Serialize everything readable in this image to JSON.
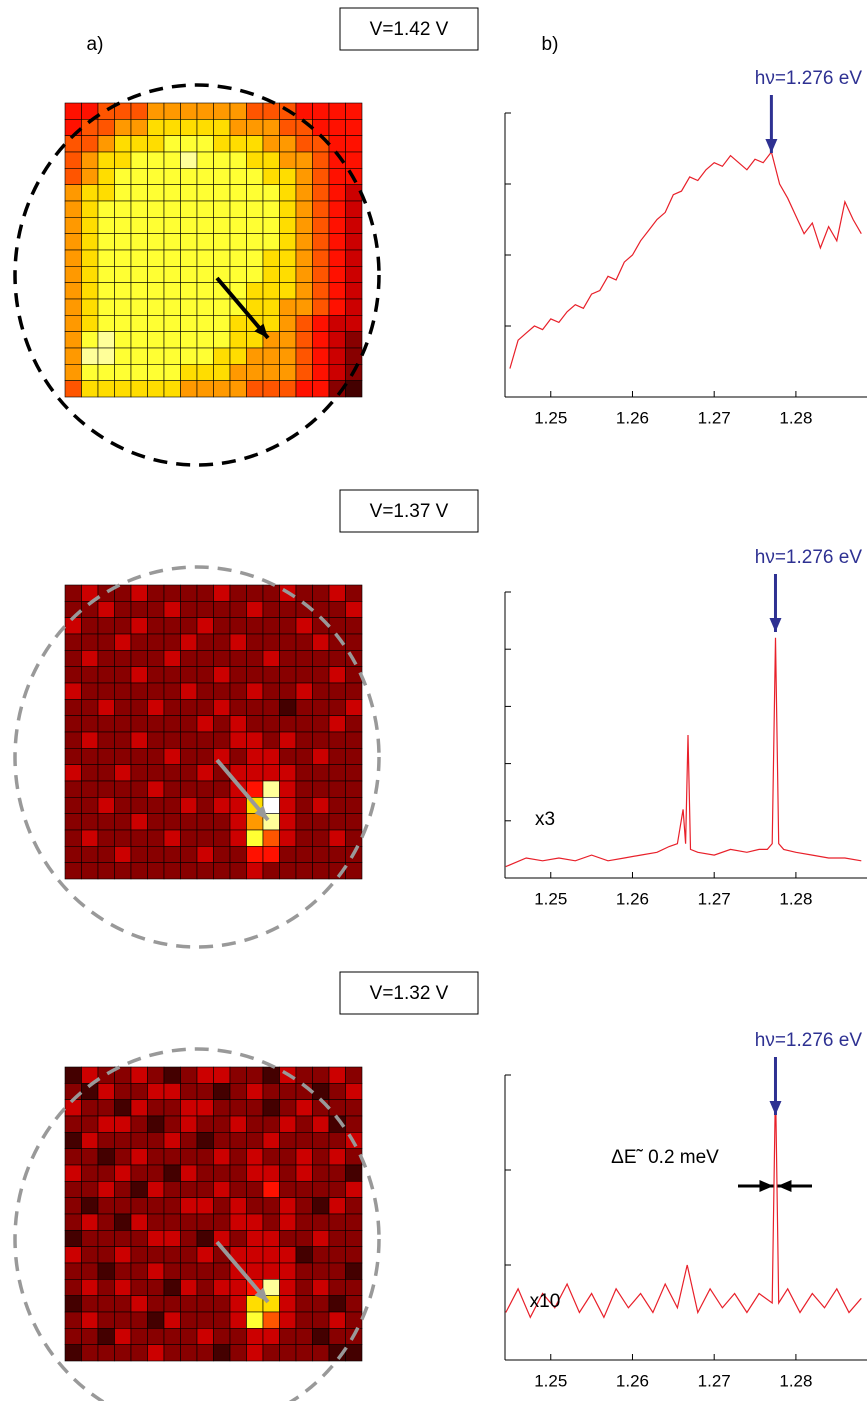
{
  "panel_labels": [
    "a)",
    "b)"
  ],
  "chart_data": [
    {
      "type": "heatmap",
      "label": "V=1.42 V",
      "colormap": "hot",
      "overlay_color": "#000000",
      "values": [
        [
          4,
          4,
          5,
          5,
          5,
          6,
          6,
          6,
          6,
          6,
          6,
          5,
          5,
          5,
          4,
          4,
          4,
          4
        ],
        [
          4,
          5,
          5,
          6,
          6,
          7,
          7,
          7,
          7,
          7,
          6,
          6,
          6,
          5,
          5,
          4,
          4,
          4
        ],
        [
          5,
          5,
          6,
          7,
          7,
          7,
          8,
          8,
          8,
          7,
          7,
          7,
          6,
          6,
          5,
          5,
          4,
          4
        ],
        [
          5,
          6,
          7,
          7,
          8,
          8,
          8,
          9,
          8,
          8,
          8,
          7,
          7,
          6,
          6,
          5,
          4,
          4
        ],
        [
          5,
          6,
          7,
          8,
          8,
          8,
          8,
          8,
          8,
          8,
          8,
          8,
          7,
          7,
          6,
          5,
          4,
          4
        ],
        [
          6,
          7,
          7,
          8,
          8,
          8,
          8,
          8,
          8,
          8,
          8,
          8,
          8,
          7,
          6,
          5,
          4,
          3
        ],
        [
          6,
          7,
          8,
          8,
          8,
          8,
          8,
          8,
          8,
          8,
          8,
          8,
          8,
          7,
          6,
          5,
          4,
          3
        ],
        [
          6,
          7,
          8,
          8,
          8,
          8,
          8,
          8,
          8,
          8,
          8,
          8,
          8,
          7,
          6,
          5,
          4,
          3
        ],
        [
          6,
          7,
          8,
          8,
          8,
          8,
          8,
          8,
          8,
          8,
          8,
          8,
          8,
          7,
          6,
          5,
          4,
          3
        ],
        [
          6,
          7,
          8,
          8,
          8,
          8,
          8,
          8,
          8,
          8,
          8,
          8,
          7,
          7,
          6,
          5,
          4,
          3
        ],
        [
          6,
          7,
          8,
          8,
          8,
          8,
          8,
          8,
          8,
          8,
          8,
          8,
          7,
          7,
          6,
          5,
          4,
          3
        ],
        [
          6,
          7,
          8,
          8,
          8,
          8,
          8,
          8,
          8,
          8,
          8,
          7,
          7,
          7,
          6,
          5,
          4,
          3
        ],
        [
          6,
          7,
          8,
          8,
          8,
          8,
          8,
          8,
          8,
          8,
          8,
          7,
          7,
          6,
          6,
          5,
          4,
          3
        ],
        [
          6,
          7,
          8,
          8,
          8,
          8,
          8,
          8,
          8,
          8,
          7,
          7,
          7,
          6,
          5,
          4,
          3,
          3
        ],
        [
          6,
          8,
          9,
          8,
          8,
          8,
          8,
          8,
          8,
          8,
          7,
          7,
          6,
          6,
          5,
          4,
          3,
          2
        ],
        [
          6,
          9,
          9,
          8,
          8,
          8,
          8,
          8,
          8,
          7,
          7,
          6,
          6,
          6,
          5,
          4,
          3,
          2
        ],
        [
          6,
          8,
          8,
          8,
          8,
          8,
          8,
          7,
          7,
          7,
          6,
          6,
          6,
          6,
          5,
          4,
          3,
          2
        ],
        [
          5,
          7,
          7,
          7,
          7,
          7,
          7,
          6,
          6,
          6,
          6,
          5,
          5,
          5,
          4,
          4,
          2,
          1
        ]
      ]
    },
    {
      "type": "line",
      "color": "#e8202a",
      "annotation": "hν=1.276 eV",
      "annotation_color": "#2e3192",
      "xlim": [
        1.2444,
        1.2887
      ],
      "xticks": [
        1.25,
        1.26,
        1.27,
        1.28
      ],
      "ylim": [
        0,
        4
      ],
      "yticks": [
        1,
        2,
        3,
        4
      ],
      "x": [
        1.245,
        1.246,
        1.247,
        1.248,
        1.249,
        1.25,
        1.251,
        1.252,
        1.253,
        1.254,
        1.255,
        1.256,
        1.257,
        1.258,
        1.259,
        1.26,
        1.261,
        1.262,
        1.263,
        1.264,
        1.265,
        1.266,
        1.267,
        1.268,
        1.269,
        1.27,
        1.271,
        1.272,
        1.273,
        1.274,
        1.275,
        1.276,
        1.277,
        1.278,
        1.279,
        1.28,
        1.281,
        1.282,
        1.283,
        1.284,
        1.285,
        1.286,
        1.287,
        1.288
      ],
      "values": [
        0.4,
        0.8,
        0.9,
        1.0,
        0.95,
        1.1,
        1.05,
        1.2,
        1.3,
        1.25,
        1.45,
        1.5,
        1.7,
        1.65,
        1.9,
        2.0,
        2.2,
        2.35,
        2.5,
        2.6,
        2.85,
        2.9,
        3.1,
        3.05,
        3.2,
        3.3,
        3.25,
        3.4,
        3.3,
        3.2,
        3.35,
        3.3,
        3.45,
        3.0,
        2.8,
        2.55,
        2.3,
        2.45,
        2.1,
        2.4,
        2.2,
        2.75,
        2.5,
        2.3
      ]
    },
    {
      "type": "heatmap",
      "label": "V=1.37 V",
      "colormap": "hot",
      "overlay_color": "#999999",
      "values": [
        [
          2,
          3,
          2,
          2,
          3,
          2,
          2,
          2,
          2,
          3,
          2,
          2,
          2,
          3,
          2,
          2,
          3,
          2
        ],
        [
          2,
          2,
          3,
          2,
          2,
          2,
          3,
          2,
          2,
          2,
          2,
          3,
          2,
          2,
          2,
          2,
          2,
          3
        ],
        [
          3,
          2,
          2,
          2,
          3,
          2,
          2,
          2,
          3,
          2,
          2,
          2,
          2,
          2,
          3,
          2,
          2,
          2
        ],
        [
          2,
          2,
          2,
          3,
          2,
          2,
          2,
          3,
          2,
          2,
          3,
          2,
          2,
          2,
          2,
          3,
          2,
          2
        ],
        [
          2,
          3,
          2,
          2,
          2,
          2,
          3,
          2,
          2,
          2,
          2,
          2,
          3,
          2,
          2,
          2,
          2,
          2
        ],
        [
          2,
          2,
          2,
          2,
          3,
          2,
          2,
          2,
          2,
          3,
          2,
          2,
          2,
          2,
          2,
          2,
          3,
          2
        ],
        [
          3,
          2,
          2,
          2,
          2,
          2,
          2,
          3,
          2,
          2,
          2,
          3,
          2,
          2,
          3,
          2,
          2,
          2
        ],
        [
          2,
          2,
          3,
          2,
          2,
          3,
          2,
          2,
          2,
          3,
          2,
          2,
          2,
          1,
          2,
          2,
          2,
          3
        ],
        [
          2,
          2,
          2,
          2,
          2,
          2,
          2,
          2,
          3,
          2,
          3,
          2,
          2,
          2,
          2,
          2,
          3,
          2
        ],
        [
          2,
          3,
          2,
          2,
          3,
          2,
          2,
          2,
          2,
          2,
          3,
          3,
          2,
          3,
          2,
          2,
          2,
          2
        ],
        [
          2,
          2,
          2,
          2,
          2,
          2,
          3,
          2,
          2,
          3,
          2,
          3,
          3,
          2,
          2,
          3,
          2,
          2
        ],
        [
          3,
          2,
          2,
          3,
          2,
          2,
          2,
          2,
          3,
          2,
          3,
          3,
          3,
          3,
          2,
          2,
          2,
          2
        ],
        [
          2,
          2,
          2,
          2,
          2,
          3,
          2,
          2,
          2,
          2,
          3,
          4,
          9,
          3,
          2,
          2,
          2,
          2
        ],
        [
          2,
          2,
          3,
          2,
          2,
          2,
          2,
          3,
          2,
          3,
          3,
          7,
          10,
          3,
          2,
          3,
          2,
          2
        ],
        [
          2,
          2,
          2,
          2,
          3,
          2,
          2,
          2,
          2,
          2,
          3,
          6,
          9,
          3,
          2,
          2,
          2,
          2
        ],
        [
          2,
          3,
          2,
          2,
          2,
          2,
          3,
          2,
          2,
          2,
          3,
          8,
          5,
          3,
          2,
          2,
          3,
          2
        ],
        [
          2,
          2,
          2,
          3,
          2,
          2,
          2,
          2,
          3,
          2,
          2,
          4,
          4,
          2,
          2,
          2,
          2,
          2
        ],
        [
          2,
          2,
          2,
          2,
          2,
          2,
          2,
          2,
          2,
          2,
          2,
          3,
          2,
          2,
          2,
          2,
          2,
          2
        ]
      ]
    },
    {
      "type": "line",
      "color": "#e8202a",
      "annotation": "hν=1.276 eV",
      "annotation_color": "#2e3192",
      "scale_label": "x3",
      "xlim": [
        1.2444,
        1.2887
      ],
      "xticks": [
        1.25,
        1.26,
        1.27,
        1.28
      ],
      "ylim": [
        0,
        5
      ],
      "yticks": [
        1,
        2,
        3,
        4,
        5
      ],
      "x": [
        1.2445,
        1.247,
        1.249,
        1.251,
        1.253,
        1.255,
        1.257,
        1.259,
        1.261,
        1.263,
        1.2645,
        1.2655,
        1.2662,
        1.2665,
        1.2668,
        1.2671,
        1.268,
        1.27,
        1.272,
        1.274,
        1.2755,
        1.2765,
        1.2771,
        1.2775,
        1.2779,
        1.2785,
        1.28,
        1.282,
        1.284,
        1.286,
        1.288
      ],
      "values": [
        0.2,
        0.35,
        0.3,
        0.35,
        0.3,
        0.4,
        0.3,
        0.35,
        0.4,
        0.45,
        0.55,
        0.6,
        1.2,
        0.6,
        2.5,
        0.5,
        0.45,
        0.4,
        0.5,
        0.45,
        0.5,
        0.5,
        0.6,
        4.2,
        0.6,
        0.5,
        0.45,
        0.4,
        0.35,
        0.35,
        0.3
      ]
    },
    {
      "type": "heatmap",
      "label": "V=1.32 V",
      "colormap": "hot",
      "overlay_color": "#999999",
      "values": [
        [
          1,
          3,
          2,
          2,
          3,
          2,
          1,
          2,
          3,
          3,
          2,
          2,
          1,
          3,
          2,
          2,
          3,
          2
        ],
        [
          2,
          1,
          3,
          2,
          2,
          3,
          3,
          2,
          2,
          1,
          2,
          3,
          2,
          2,
          2,
          1,
          2,
          3
        ],
        [
          3,
          2,
          2,
          1,
          3,
          2,
          2,
          3,
          3,
          2,
          2,
          2,
          1,
          2,
          3,
          2,
          2,
          2
        ],
        [
          2,
          2,
          3,
          3,
          2,
          1,
          2,
          3,
          2,
          2,
          3,
          2,
          2,
          3,
          2,
          3,
          1,
          2
        ],
        [
          1,
          3,
          2,
          2,
          2,
          2,
          3,
          2,
          1,
          2,
          2,
          2,
          3,
          2,
          2,
          2,
          2,
          3
        ],
        [
          2,
          2,
          1,
          2,
          3,
          2,
          2,
          2,
          2,
          3,
          2,
          3,
          2,
          2,
          3,
          2,
          3,
          2
        ],
        [
          3,
          2,
          2,
          3,
          2,
          2,
          1,
          3,
          2,
          2,
          2,
          3,
          3,
          2,
          3,
          2,
          2,
          1
        ],
        [
          2,
          2,
          3,
          2,
          1,
          3,
          2,
          2,
          2,
          3,
          2,
          2,
          4,
          2,
          2,
          2,
          2,
          3
        ],
        [
          2,
          1,
          2,
          2,
          2,
          2,
          2,
          3,
          3,
          2,
          3,
          2,
          2,
          3,
          2,
          1,
          3,
          2
        ],
        [
          2,
          3,
          2,
          1,
          3,
          2,
          2,
          2,
          2,
          2,
          3,
          3,
          2,
          3,
          2,
          2,
          2,
          2
        ],
        [
          1,
          2,
          2,
          2,
          2,
          3,
          3,
          2,
          1,
          3,
          2,
          3,
          3,
          2,
          2,
          3,
          2,
          2
        ],
        [
          3,
          2,
          2,
          3,
          2,
          2,
          2,
          2,
          3,
          2,
          3,
          3,
          3,
          3,
          1,
          2,
          2,
          2
        ],
        [
          2,
          2,
          1,
          2,
          2,
          3,
          2,
          2,
          2,
          2,
          3,
          3,
          3,
          3,
          2,
          2,
          2,
          1
        ],
        [
          2,
          3,
          2,
          3,
          2,
          2,
          1,
          3,
          2,
          3,
          3,
          4,
          9,
          3,
          2,
          3,
          2,
          2
        ],
        [
          1,
          2,
          2,
          2,
          3,
          2,
          2,
          2,
          2,
          2,
          3,
          7,
          7,
          3,
          2,
          2,
          1,
          2
        ],
        [
          2,
          3,
          2,
          2,
          2,
          1,
          3,
          2,
          2,
          2,
          3,
          8,
          5,
          3,
          2,
          2,
          3,
          2
        ],
        [
          2,
          2,
          1,
          3,
          2,
          2,
          2,
          2,
          3,
          2,
          2,
          3,
          3,
          2,
          2,
          1,
          2,
          2
        ],
        [
          1,
          2,
          2,
          2,
          2,
          3,
          2,
          2,
          2,
          1,
          2,
          3,
          2,
          2,
          2,
          2,
          1,
          1
        ]
      ]
    },
    {
      "type": "line",
      "color": "#e8202a",
      "annotation": "hν=1.276 eV",
      "annotation_color": "#2e3192",
      "scale_label": "x10",
      "width_label": "ΔE˜ 0.2 meV",
      "xlim": [
        1.2444,
        1.2887
      ],
      "xticks": [
        1.25,
        1.26,
        1.27,
        1.28
      ],
      "ylim": [
        0,
        3
      ],
      "yticks": [
        1,
        2,
        3
      ],
      "x": [
        1.2445,
        1.246,
        1.2475,
        1.249,
        1.2505,
        1.252,
        1.2535,
        1.255,
        1.2565,
        1.258,
        1.2595,
        1.261,
        1.2625,
        1.264,
        1.2655,
        1.2667,
        1.268,
        1.2695,
        1.271,
        1.2725,
        1.274,
        1.2755,
        1.2771,
        1.2775,
        1.2779,
        1.279,
        1.2805,
        1.282,
        1.2835,
        1.285,
        1.2865,
        1.288
      ],
      "values": [
        0.5,
        0.75,
        0.45,
        0.7,
        0.55,
        0.8,
        0.5,
        0.7,
        0.45,
        0.75,
        0.55,
        0.7,
        0.5,
        0.8,
        0.55,
        1.0,
        0.5,
        0.75,
        0.55,
        0.7,
        0.5,
        0.7,
        0.6,
        2.9,
        0.6,
        0.75,
        0.5,
        0.7,
        0.55,
        0.75,
        0.5,
        0.65
      ]
    }
  ]
}
